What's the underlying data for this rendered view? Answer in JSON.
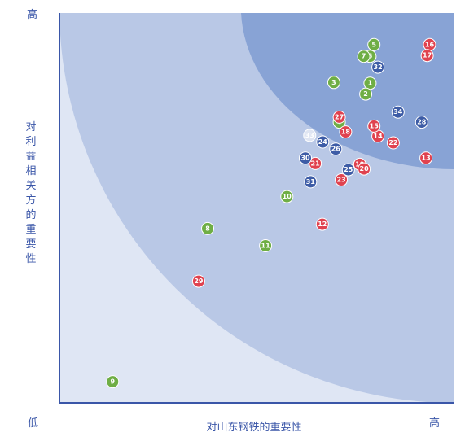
{
  "chart_data": {
    "type": "scatter",
    "xlabel": "对山东钢铁的重要性",
    "ylabel": "对利益相关方的重要性",
    "x_low_label": "低",
    "x_high_label": "高",
    "y_high_label": "高",
    "xlim": [
      0,
      100
    ],
    "ylim": [
      0,
      100
    ],
    "grid": false,
    "zones": [
      "low",
      "medium",
      "high"
    ],
    "colors": {
      "zone_low": "#dfe6f4",
      "zone_medium": "#b9c8e6",
      "zone_high": "#88a3d5",
      "axis": "#3a56a8",
      "green": "#6fae45",
      "red": "#e0424f",
      "blue": "#3d5ca6",
      "white": "#dfe5f2"
    },
    "points": [
      {
        "label": "1",
        "x": 78.8,
        "y": 82.0,
        "color": "green"
      },
      {
        "label": "2",
        "x": 77.7,
        "y": 79.2,
        "color": "green"
      },
      {
        "label": "3",
        "x": 69.6,
        "y": 82.2,
        "color": "green"
      },
      {
        "label": "4",
        "x": 71.0,
        "y": 72.0,
        "color": "green"
      },
      {
        "label": "5",
        "x": 79.8,
        "y": 91.9,
        "color": "green"
      },
      {
        "label": "6",
        "x": 78.8,
        "y": 88.9,
        "color": "green"
      },
      {
        "label": "7",
        "x": 77.2,
        "y": 88.9,
        "color": "green"
      },
      {
        "label": "8",
        "x": 37.6,
        "y": 44.7,
        "color": "green"
      },
      {
        "label": "9",
        "x": 13.5,
        "y": 5.4,
        "color": "green"
      },
      {
        "label": "10",
        "x": 57.7,
        "y": 52.9,
        "color": "green"
      },
      {
        "label": "11",
        "x": 52.3,
        "y": 40.3,
        "color": "green"
      },
      {
        "label": "12",
        "x": 66.7,
        "y": 45.8,
        "color": "red"
      },
      {
        "label": "13",
        "x": 93.0,
        "y": 62.8,
        "color": "red"
      },
      {
        "label": "14",
        "x": 80.8,
        "y": 68.4,
        "color": "red"
      },
      {
        "label": "15",
        "x": 79.8,
        "y": 71.0,
        "color": "red"
      },
      {
        "label": "16",
        "x": 93.9,
        "y": 91.9,
        "color": "red"
      },
      {
        "label": "17",
        "x": 93.3,
        "y": 89.1,
        "color": "red"
      },
      {
        "label": "18",
        "x": 72.6,
        "y": 69.5,
        "color": "red"
      },
      {
        "label": "19",
        "x": 76.2,
        "y": 61.2,
        "color": "red"
      },
      {
        "label": "20",
        "x": 77.3,
        "y": 60.0,
        "color": "red"
      },
      {
        "label": "21",
        "x": 64.9,
        "y": 61.4,
        "color": "red"
      },
      {
        "label": "22",
        "x": 84.7,
        "y": 66.7,
        "color": "red"
      },
      {
        "label": "23",
        "x": 71.5,
        "y": 57.2,
        "color": "red"
      },
      {
        "label": "24",
        "x": 66.8,
        "y": 66.9,
        "color": "blue"
      },
      {
        "label": "25",
        "x": 73.3,
        "y": 59.8,
        "color": "blue"
      },
      {
        "label": "26",
        "x": 70.1,
        "y": 65.1,
        "color": "blue"
      },
      {
        "label": "27",
        "x": 71.0,
        "y": 73.3,
        "color": "red"
      },
      {
        "label": "28",
        "x": 91.9,
        "y": 72.0,
        "color": "blue"
      },
      {
        "label": "29",
        "x": 35.3,
        "y": 31.2,
        "color": "red"
      },
      {
        "label": "30",
        "x": 62.4,
        "y": 62.8,
        "color": "blue"
      },
      {
        "label": "31",
        "x": 63.7,
        "y": 56.7,
        "color": "blue"
      },
      {
        "label": "32",
        "x": 80.8,
        "y": 86.1,
        "color": "blue"
      },
      {
        "label": "33",
        "x": 63.5,
        "y": 68.6,
        "color": "white"
      },
      {
        "label": "34",
        "x": 85.9,
        "y": 74.6,
        "color": "blue"
      }
    ]
  }
}
